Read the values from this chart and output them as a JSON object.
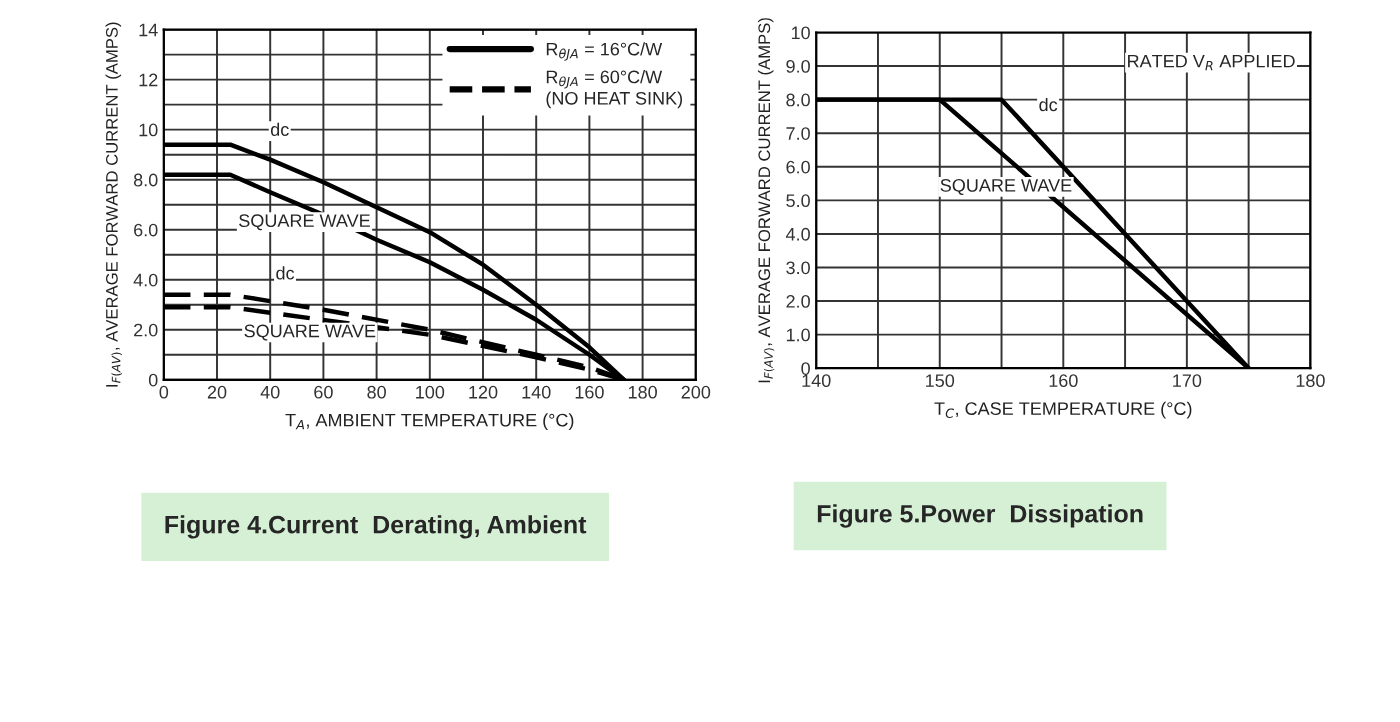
{
  "chart_data": [
    {
      "type": "line",
      "title": "Figure 4.Current  Derating, Ambient",
      "xlabel": "T$_{A}$, AMBIENT TEMPERATURE (°C)",
      "ylabel": "I$_{F(AV)}$, AVERAGE FORWARD CURRENT (AMPS)",
      "xlim": [
        0,
        200
      ],
      "xticks": [
        0,
        20,
        40,
        60,
        80,
        100,
        120,
        140,
        160,
        180,
        200
      ],
      "ylim": [
        0,
        14
      ],
      "yticks": [
        0,
        {
          "value": 1,
          "label": null
        },
        {
          "value": 2,
          "label": "2.0"
        },
        {
          "value": 3,
          "label": null
        },
        {
          "value": 4,
          "label": "4.0"
        },
        {
          "value": 5,
          "label": null
        },
        {
          "value": 6,
          "label": "6.0"
        },
        {
          "value": 7,
          "label": null
        },
        {
          "value": 8,
          "label": "8.0"
        },
        {
          "value": 9,
          "label": null
        },
        10,
        {
          "value": 11,
          "label": null
        },
        12,
        {
          "value": 13,
          "label": null
        },
        14
      ],
      "grid": true,
      "legend": "top right",
      "marker": "none",
      "series": [
        {
          "name": "R$_{θJA}$ = 16°C/W",
          "color": "#000000",
          "line_style": "solid",
          "x": [
            0,
            25,
            40,
            60,
            80,
            100,
            120,
            140,
            160,
            173
          ],
          "values": [
            9.4,
            9.4,
            8.8,
            7.9,
            6.9,
            5.9,
            4.6,
            3.0,
            1.3,
            0
          ]
        },
        {
          "color": "#000000",
          "line_style": "solid",
          "x": [
            0,
            25,
            40,
            60,
            80,
            100,
            120,
            140,
            160,
            173
          ],
          "values": [
            8.2,
            8.2,
            7.5,
            6.6,
            5.6,
            4.7,
            3.6,
            2.4,
            1.0,
            0
          ]
        },
        {
          "name": "R$_{θJA}$ = 60°C/W\n(NO HEAT SINK)",
          "color": "#000000",
          "line_style": "dashed",
          "x": [
            0,
            25,
            60,
            100,
            140,
            160,
            173
          ],
          "values": [
            3.4,
            3.4,
            2.8,
            2.0,
            1.0,
            0.5,
            0
          ]
        },
        {
          "color": "#000000",
          "line_style": "dashed",
          "x": [
            0,
            25,
            80,
            100,
            140,
            160,
            173
          ],
          "values": [
            2.9,
            2.9,
            2.1,
            1.8,
            0.9,
            0.4,
            0
          ]
        }
      ],
      "annotations": [
        "dc",
        "SQUARE WAVE",
        "dc",
        "SQUARE WAVE"
      ]
    },
    {
      "type": "line",
      "title": "Figure 5.Power  Dissipation",
      "xlabel": "T$_{C}$, CASE TEMPERATURE (°C)",
      "ylabel": "I$_{F(AV)}$, AVERAGE FORWARD CURRENT (AMPS)",
      "xlim": [
        140,
        180
      ],
      "xticks": [
        140,
        {
          "value": 145,
          "label": null
        },
        150,
        {
          "value": 155,
          "label": null
        },
        160,
        {
          "value": 165,
          "label": null
        },
        170,
        {
          "value": 175,
          "label": null
        },
        180
      ],
      "ylim": [
        0,
        10
      ],
      "yticks": [
        0,
        {
          "value": 1,
          "label": "1.0"
        },
        {
          "value": 2,
          "label": "2.0"
        },
        {
          "value": 3,
          "label": "3.0"
        },
        {
          "value": 4,
          "label": "4.0"
        },
        {
          "value": 5,
          "label": "5.0"
        },
        {
          "value": 6,
          "label": "6.0"
        },
        {
          "value": 7,
          "label": "7.0"
        },
        {
          "value": 8,
          "label": "8.0"
        },
        {
          "value": 9,
          "label": "9.0"
        },
        10
      ],
      "grid": true,
      "marker": "none",
      "series": [
        {
          "color": "#000000",
          "line_style": "solid",
          "x": [
            140,
            155,
            175
          ],
          "values": [
            8,
            8,
            0
          ]
        },
        {
          "color": "#000000",
          "line_style": "solid",
          "x": [
            140,
            150,
            175
          ],
          "values": [
            8,
            8,
            0
          ]
        }
      ],
      "annotations": [
        "dc",
        "SQUARE WAVE",
        "RATED V$_{R}$ APPLIED"
      ]
    }
  ]
}
